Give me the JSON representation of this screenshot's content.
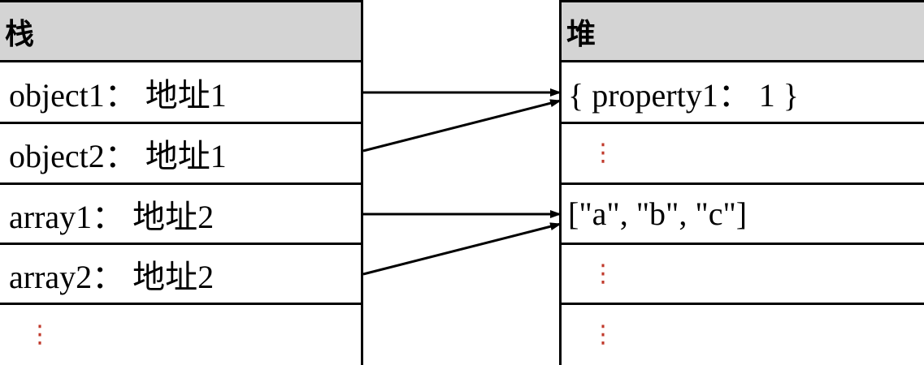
{
  "stack": {
    "header": "栈",
    "rows": [
      "object1： 地址1",
      "object2： 地址1",
      "array1： 地址2",
      "array2： 地址2"
    ],
    "ellipsis": "⋮"
  },
  "heap": {
    "header": "堆",
    "rows": [
      "{ property1： 1 }",
      "⋮",
      "[\"a\", \"b\", \"c\"]",
      "⋮",
      "⋮"
    ]
  },
  "colors": {
    "header_bg": "#d4d4d4",
    "ellipsis": "#c0392b",
    "line": "#000000"
  }
}
